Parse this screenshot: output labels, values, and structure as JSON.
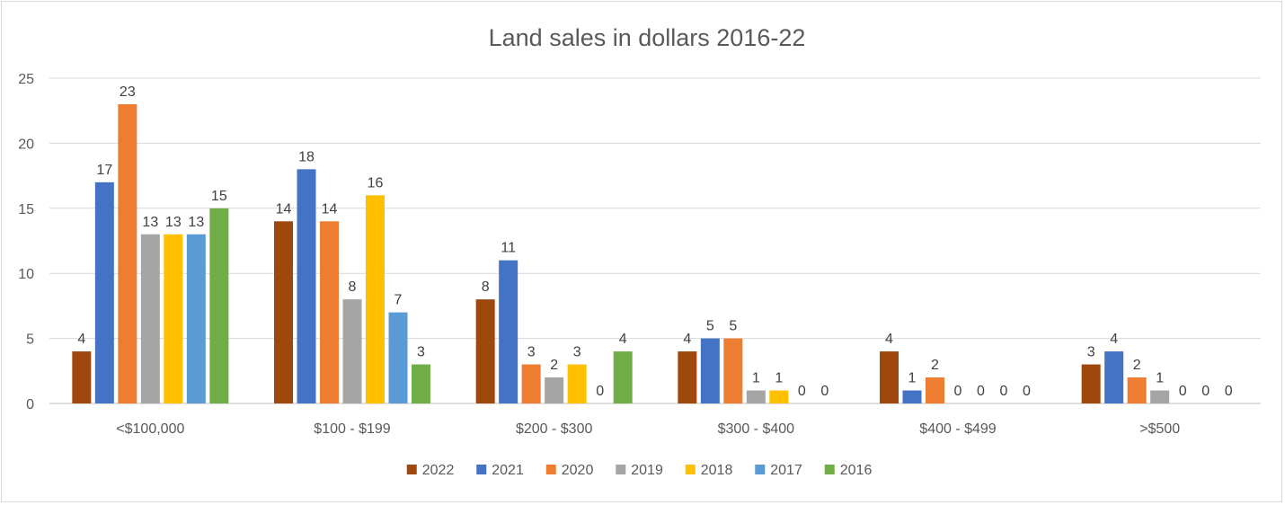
{
  "chart_data": {
    "type": "bar",
    "title": "Land sales in dollars 2016-22",
    "categories": [
      "<$100,000",
      "$100 - $199",
      "$200 - $300",
      "$300 - $400",
      "$400 - $499",
      ">$500"
    ],
    "series": [
      {
        "name": "2022",
        "color": "#9e480e",
        "values": [
          4,
          14,
          8,
          4,
          4,
          3
        ]
      },
      {
        "name": "2021",
        "color": "#4472c4",
        "values": [
          17,
          18,
          11,
          5,
          1,
          4
        ]
      },
      {
        "name": "2020",
        "color": "#ed7d31",
        "values": [
          23,
          14,
          3,
          5,
          2,
          2
        ]
      },
      {
        "name": "2019",
        "color": "#a5a5a5",
        "values": [
          13,
          8,
          2,
          1,
          0,
          1
        ]
      },
      {
        "name": "2018",
        "color": "#ffc000",
        "values": [
          13,
          16,
          3,
          1,
          0,
          0
        ]
      },
      {
        "name": "2017",
        "color": "#5b9bd5",
        "values": [
          13,
          7,
          0,
          0,
          0,
          0
        ]
      },
      {
        "name": "2016",
        "color": "#70ad47",
        "values": [
          15,
          3,
          4,
          0,
          0,
          0
        ]
      }
    ],
    "data_labels": [
      [
        "4",
        "17",
        "23",
        "13",
        "13",
        "13",
        "15"
      ],
      [
        "14",
        "18",
        "14",
        "8",
        "16",
        "7",
        "3"
      ],
      [
        "8",
        "11",
        "3",
        "2",
        "3",
        "0",
        "4"
      ],
      [
        "4",
        "5",
        "5",
        "1",
        "1",
        "0",
        "0"
      ],
      [
        "4",
        "1",
        "2",
        "0",
        "0",
        "0",
        "0"
      ],
      [
        "3",
        "4",
        "2",
        "1",
        "0",
        "0",
        "0"
      ]
    ],
    "y_ticks": [
      "0",
      "5",
      "10",
      "15",
      "20",
      "25"
    ],
    "ylim": [
      0,
      25
    ],
    "xlabel": "",
    "ylabel": "",
    "grid": true,
    "legend_position": "bottom"
  }
}
